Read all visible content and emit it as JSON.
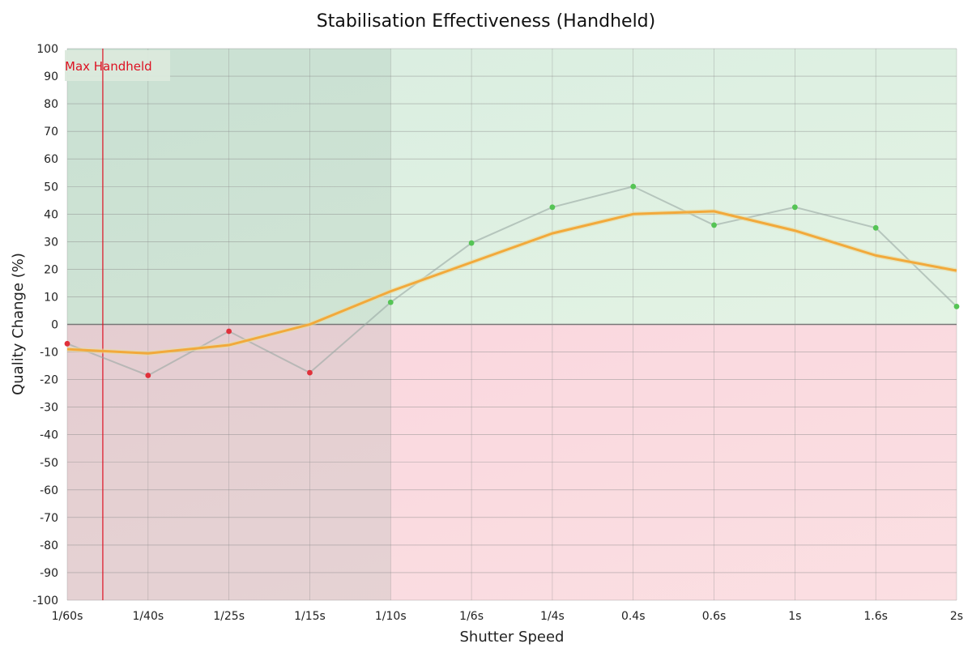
{
  "chart_data": {
    "type": "line",
    "title": "Stabilisation Effectiveness (Handheld)",
    "xlabel": "Shutter Speed",
    "ylabel": "Quality Change (%)",
    "categories": [
      "1/60s",
      "1/40s",
      "1/25s",
      "1/15s",
      "1/10s",
      "1/6s",
      "1/4s",
      "0.4s",
      "0.6s",
      "1s",
      "1.6s",
      "2s"
    ],
    "ylim": [
      -100,
      100
    ],
    "yticks": [
      100,
      90,
      80,
      70,
      60,
      50,
      40,
      30,
      20,
      10,
      0,
      -10,
      -20,
      -30,
      -40,
      -50,
      -60,
      -70,
      -80,
      -90,
      -100
    ],
    "grid": true,
    "legend": "none",
    "series": [
      {
        "role": "measured",
        "values": [
          -7,
          -18.5,
          -2.5,
          -17.5,
          8,
          29.5,
          42.5,
          50,
          36,
          42.5,
          35,
          6.5
        ],
        "color": "#9aa8a4",
        "positive_point_color": "#55c455",
        "negative_point_color": "#e0303a"
      },
      {
        "role": "trend",
        "values": [
          -9,
          -10.5,
          -7.5,
          0,
          12,
          22.5,
          33,
          40,
          41,
          34,
          25,
          19.5
        ],
        "color": "#f2a93b"
      }
    ],
    "annotations": [
      {
        "type": "vline",
        "label": "Max Handheld",
        "x_category_position": 0.44,
        "color": "#dd1122"
      }
    ],
    "regions": [
      {
        "name": "positive",
        "from": 0,
        "to": 100,
        "color": "#dbeee3"
      },
      {
        "name": "negative",
        "from": -100,
        "to": 0,
        "color": "#f9d9df"
      },
      {
        "name": "handheld-shutter-range",
        "from_category": "1/60s",
        "to_category": "1/10s",
        "color": "#7fa08f"
      }
    ]
  }
}
